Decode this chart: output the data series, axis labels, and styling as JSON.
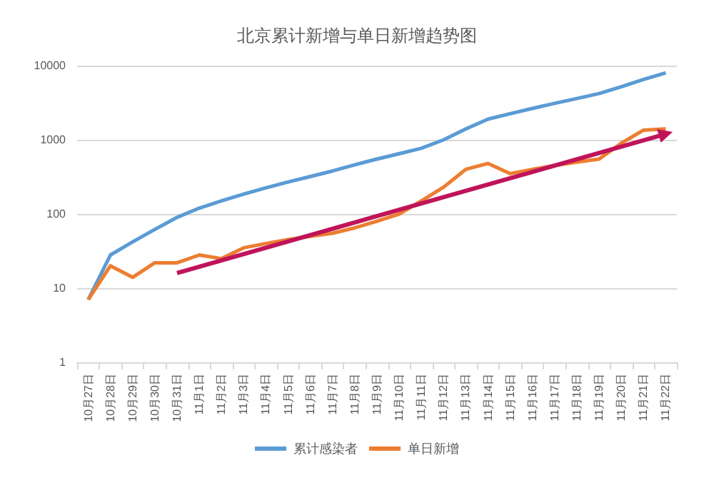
{
  "chart_data": {
    "type": "line",
    "title": "北京累计新增与单日新增趋势图",
    "categories": [
      "10月27日",
      "10月28日",
      "10月29日",
      "10月30日",
      "10月31日",
      "11月1日",
      "11月2日",
      "11月3日",
      "11月4日",
      "11月5日",
      "11月6日",
      "11月7日",
      "11月8日",
      "11月9日",
      "11月10日",
      "11月11日",
      "11月12日",
      "11月13日",
      "11月14日",
      "11月15日",
      "11月16日",
      "11月17日",
      "11月18日",
      "11月19日",
      "11月20日",
      "11月21日",
      "11月22日"
    ],
    "series": [
      {
        "name": "累计感染者",
        "color": "#5b9bd5",
        "values": [
          7,
          28,
          42,
          62,
          90,
          120,
          150,
          185,
          225,
          270,
          320,
          380,
          460,
          550,
          650,
          770,
          1000,
          1400,
          1900,
          2250,
          2650,
          3100,
          3600,
          4200,
          5200,
          6500,
          8000
        ]
      },
      {
        "name": "单日新增",
        "color": "#ed7d31",
        "values": [
          7,
          20,
          14,
          22,
          22,
          28,
          25,
          35,
          40,
          45,
          50,
          55,
          65,
          80,
          100,
          150,
          230,
          400,
          480,
          350,
          400,
          450,
          500,
          550,
          900,
          1350,
          1400
        ]
      },
      {
        "color": "#c0145a",
        "marker": "triangle",
        "x": [
          "10月31日",
          "11月22日"
        ],
        "values": [
          16,
          1200
        ]
      }
    ],
    "log": "y",
    "ylim": [
      1,
      10000
    ],
    "yticks": [
      1,
      10,
      100,
      1000,
      10000
    ],
    "grid": "y",
    "legend": "bottom",
    "marker": "none"
  }
}
